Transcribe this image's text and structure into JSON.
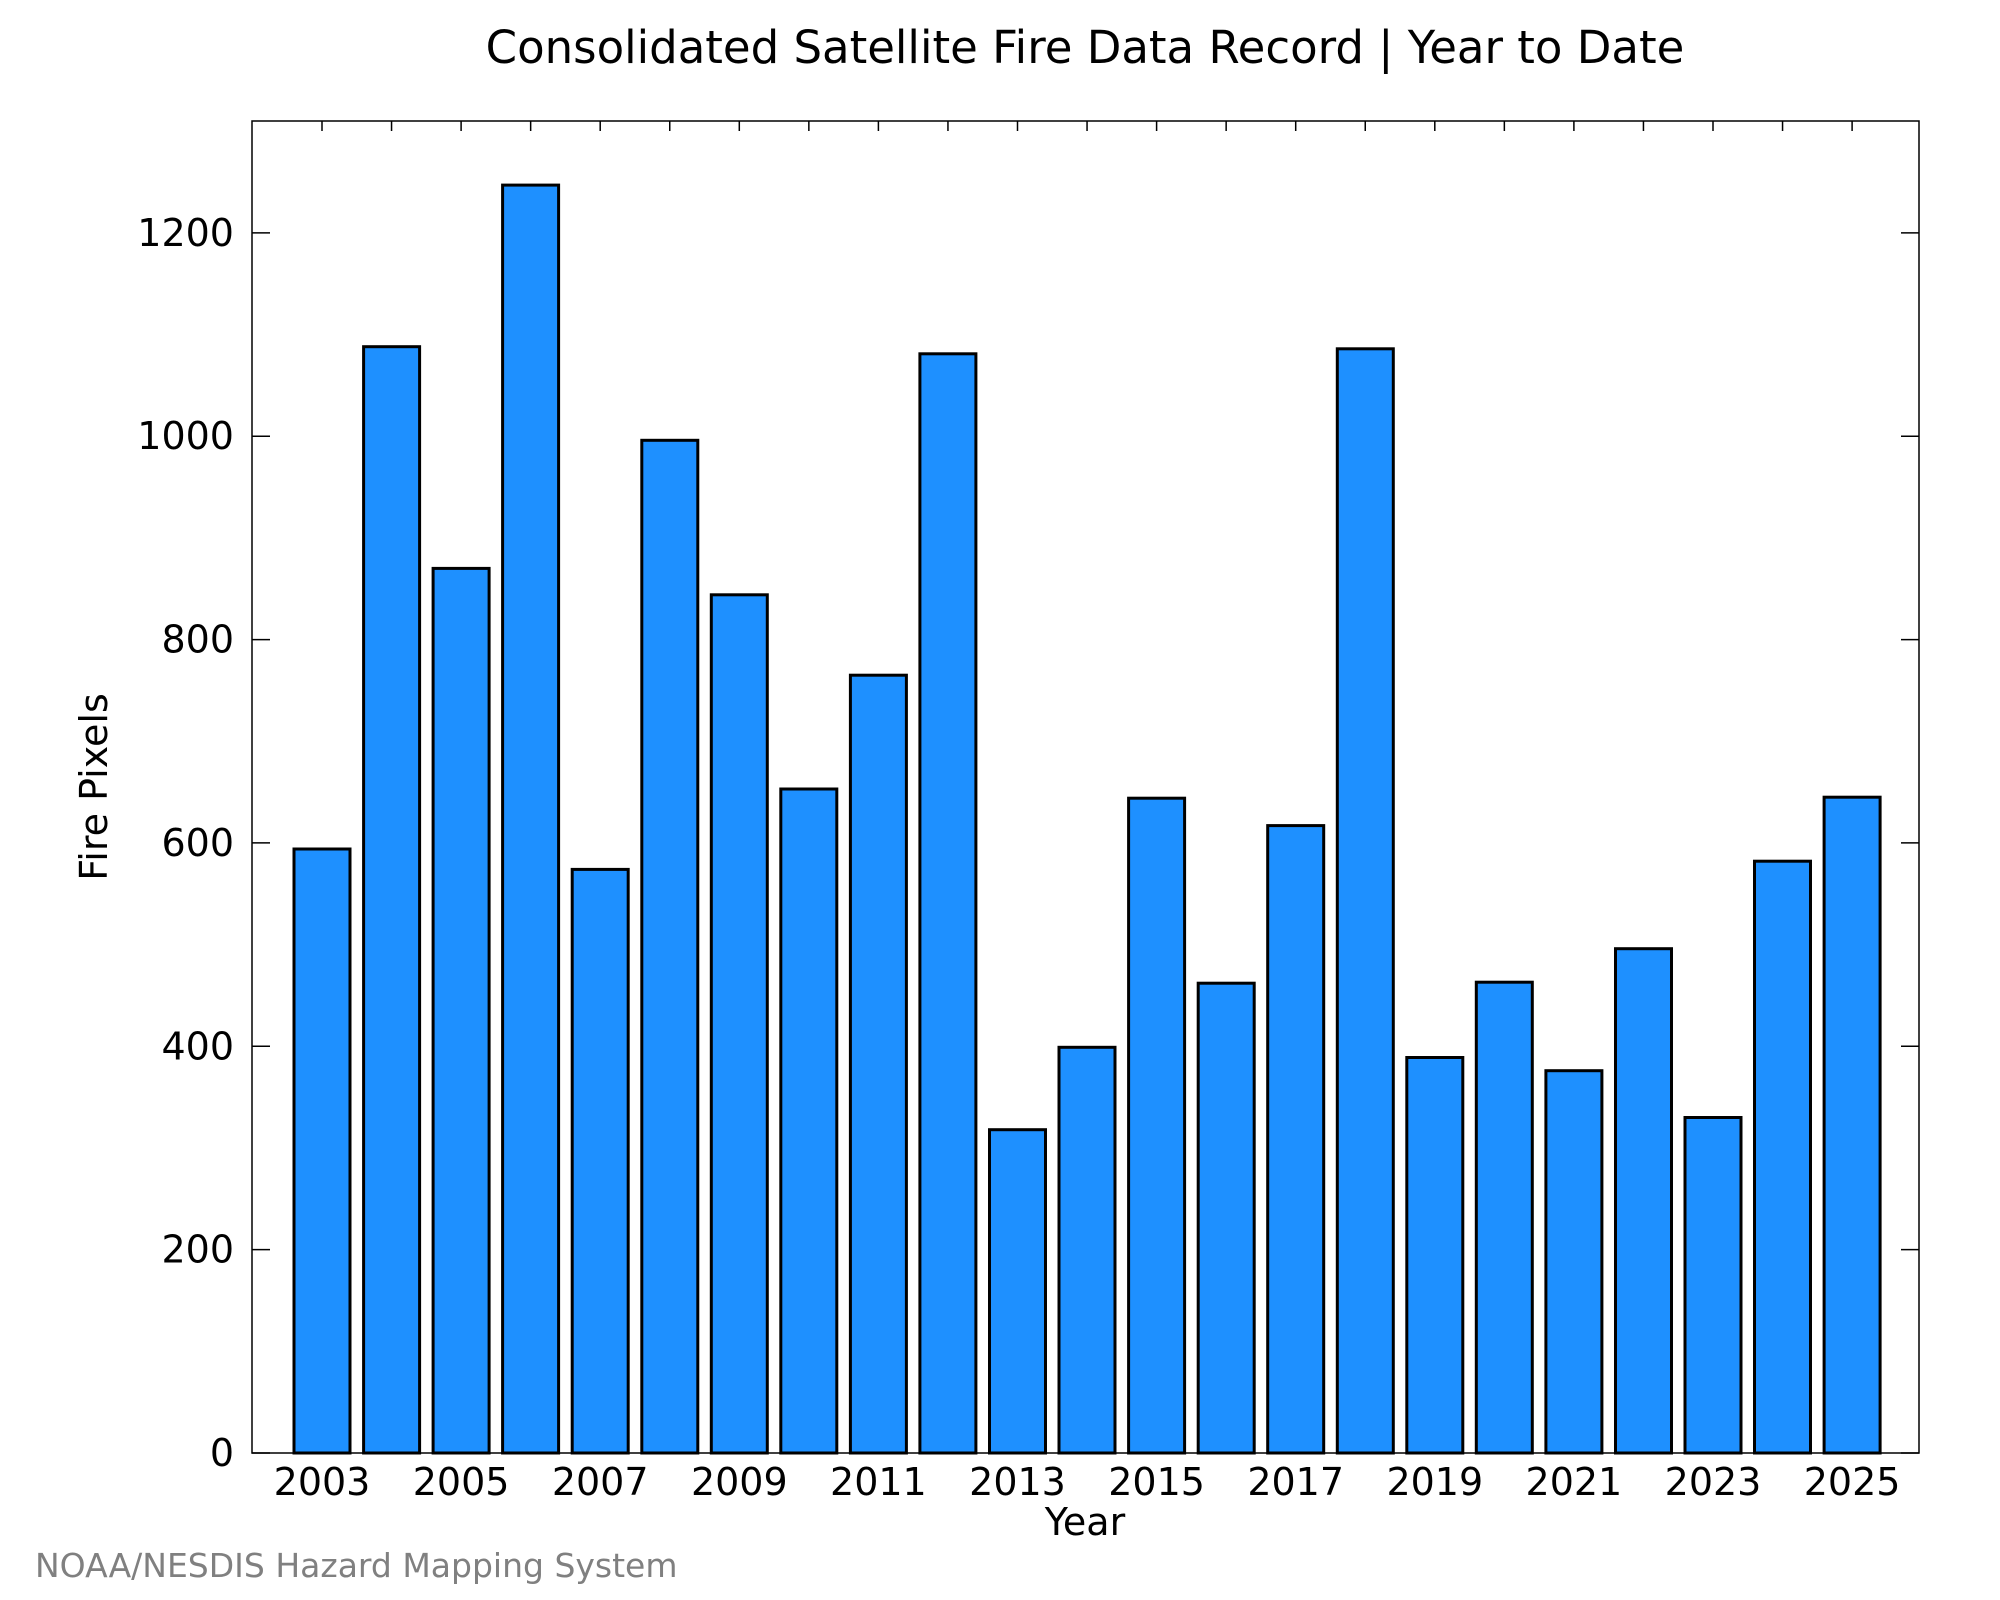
{
  "chart_data": {
    "type": "bar",
    "title": "Consolidated Satellite Fire Data Record | Year to Date",
    "xlabel": "Year",
    "ylabel": "Fire Pixels",
    "categories": [
      "2003",
      "2004",
      "2005",
      "2006",
      "2007",
      "2008",
      "2009",
      "2010",
      "2011",
      "2012",
      "2013",
      "2014",
      "2015",
      "2016",
      "2017",
      "2018",
      "2019",
      "2020",
      "2021",
      "2022",
      "2023",
      "2024",
      "2025"
    ],
    "values": [
      594,
      1088,
      870,
      1247,
      574,
      996,
      844,
      653,
      765,
      1081,
      318,
      399,
      644,
      462,
      617,
      1086,
      389,
      463,
      376,
      496,
      330,
      582,
      645
    ],
    "xticks": [
      "2003",
      "2005",
      "2007",
      "2009",
      "2011",
      "2013",
      "2015",
      "2017",
      "2019",
      "2021",
      "2023",
      "2025"
    ],
    "yticks": [
      0,
      200,
      400,
      600,
      800,
      1000,
      1200
    ],
    "ylim": [
      0,
      1310
    ],
    "grid": false,
    "bar_color": "#1e90ff",
    "bar_edge_color": "#000000"
  },
  "credit": "NOAA/NESDIS Hazard Mapping System"
}
